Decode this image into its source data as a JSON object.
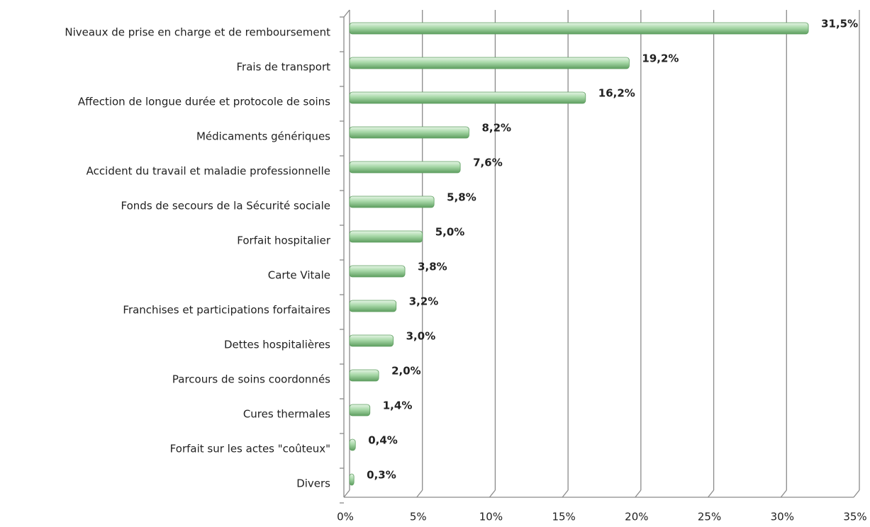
{
  "chart_data": {
    "type": "bar",
    "orientation": "horizontal",
    "categories": [
      "Niveaux de prise en charge et de remboursement",
      "Frais de transport",
      "Affection de longue durée et protocole de soins",
      "Médicaments génériques",
      "Accident du travail et maladie professionnelle",
      "Fonds de secours de la Sécurité sociale",
      "Forfait hospitalier",
      "Carte Vitale",
      "Franchises et participations forfaitaires",
      "Dettes hospitalières",
      "Parcours de soins coordonnés",
      "Cures thermales",
      "Forfait sur les actes \"coûteux\"",
      "Divers"
    ],
    "values": [
      31.5,
      19.2,
      16.2,
      8.2,
      7.6,
      5.8,
      5.0,
      3.8,
      3.2,
      3.0,
      2.0,
      1.4,
      0.4,
      0.3
    ],
    "value_labels": [
      "31,5%",
      "19,2%",
      "16,2%",
      "8,2%",
      "7,6%",
      "5,8%",
      "5,0%",
      "3,8%",
      "3,2%",
      "3,0%",
      "2,0%",
      "1,4%",
      "0,4%",
      "0,3%"
    ],
    "color": "#a8d8a8",
    "xlim": [
      0,
      35
    ],
    "xticks": [
      {
        "value": 0,
        "label": "0%"
      },
      {
        "value": 5,
        "label": "5%"
      },
      {
        "value": 10,
        "label": "10%"
      },
      {
        "value": 15,
        "label": "15%"
      },
      {
        "value": 20,
        "label": "20%"
      },
      {
        "value": 25,
        "label": "25%"
      },
      {
        "value": 30,
        "label": "30%"
      },
      {
        "value": 35,
        "label": "35%"
      }
    ],
    "grid": true
  }
}
